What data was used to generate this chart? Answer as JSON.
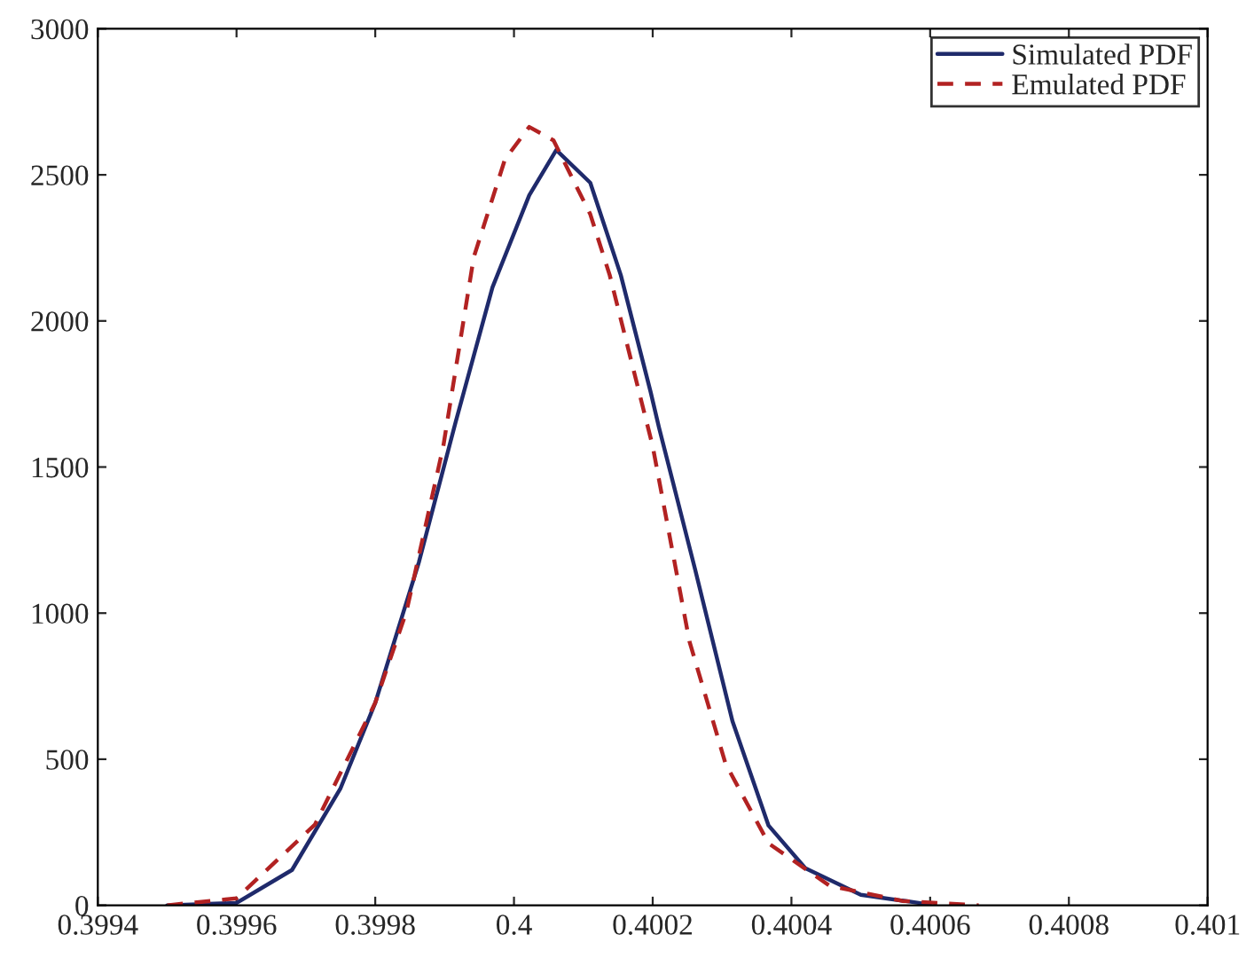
{
  "chart_data": {
    "type": "line",
    "xlim": [
      0.3994,
      0.401
    ],
    "xticks": [
      0.3994,
      0.3996,
      0.3998,
      0.4,
      0.4002,
      0.4004,
      0.4006,
      0.4008,
      0.401
    ],
    "ylim": [
      0,
      3000
    ],
    "yticks": [
      0,
      500,
      1000,
      1500,
      2000,
      2500,
      3000
    ],
    "legend": "top right",
    "grid": false,
    "series": [
      {
        "name": "Simulated PDF",
        "color": "#1f2a6b",
        "line_style": "solid",
        "x": [
          0.3995,
          0.3996,
          0.39968,
          0.39975,
          0.3998,
          0.399863,
          0.399916,
          0.399969,
          0.400022,
          0.400061,
          0.40011,
          0.400154,
          0.400197,
          0.400209,
          0.400261,
          0.400315,
          0.400367,
          0.40042,
          0.4005,
          0.40059,
          0.4006
        ],
        "values": [
          0,
          8,
          121,
          401,
          693,
          1175,
          1655,
          2115,
          2430,
          2585,
          2473,
          2157,
          1757,
          1636,
          1151,
          630,
          273,
          127,
          36,
          6,
          0
        ]
      },
      {
        "name": "Emulated PDF",
        "color": "#b22222",
        "line_style": "dashed",
        "x": [
          0.3995,
          0.3996,
          0.399713,
          0.3998,
          0.399845,
          0.399898,
          0.399942,
          0.399987,
          0.400022,
          0.400057,
          0.40011,
          0.400138,
          0.4002,
          0.400253,
          0.400305,
          0.400367,
          0.400455,
          0.40056,
          0.40067
        ],
        "values": [
          0,
          24,
          276,
          693,
          1006,
          1570,
          2218,
          2553,
          2664,
          2618,
          2365,
          2157,
          1571,
          903,
          485,
          212,
          67,
          15,
          0
        ]
      }
    ]
  }
}
